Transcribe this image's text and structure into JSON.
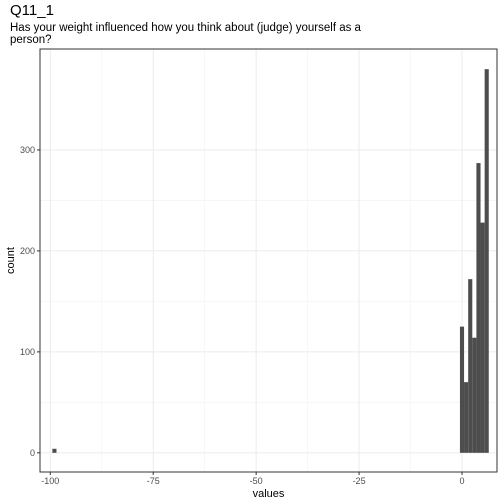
{
  "chart_data": {
    "type": "bar",
    "title": "Q11_1",
    "subtitle": "Has your weight influenced how you think about (judge) yourself as a person?",
    "xlabel": "values",
    "ylabel": "count",
    "xlim": [
      -102.5,
      8.5
    ],
    "ylim": [
      -19,
      400
    ],
    "x_ticks": [
      -100,
      -75,
      -50,
      -25,
      0
    ],
    "x_tick_labels": [
      "-100",
      "-75",
      "-50",
      "-25",
      "0"
    ],
    "y_ticks": [
      0,
      100,
      200,
      300
    ],
    "y_tick_labels": [
      "0",
      "100",
      "200",
      "300"
    ],
    "grid": true,
    "bar_color": "#4d4d4d",
    "bins": [
      {
        "x0": -99.5,
        "x1": -98.5,
        "count": 4
      },
      {
        "x0": -0.5,
        "x1": 0.5,
        "count": 125
      },
      {
        "x0": 0.5,
        "x1": 1.5,
        "count": 70
      },
      {
        "x0": 1.5,
        "x1": 2.5,
        "count": 172
      },
      {
        "x0": 2.5,
        "x1": 3.5,
        "count": 114
      },
      {
        "x0": 3.5,
        "x1": 4.5,
        "count": 287
      },
      {
        "x0": 4.5,
        "x1": 5.5,
        "count": 228
      },
      {
        "x0": 5.5,
        "x1": 6.5,
        "count": 380
      }
    ]
  }
}
